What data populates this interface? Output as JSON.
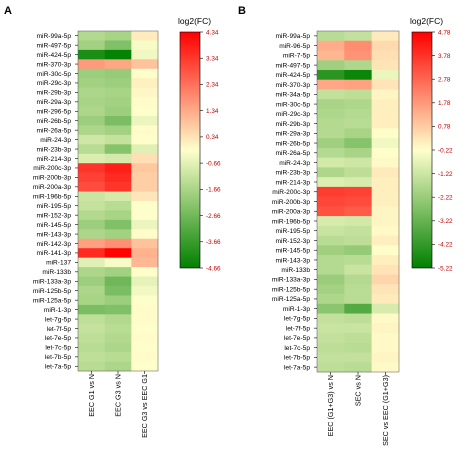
{
  "chart_data": [
    {
      "type": "heatmap",
      "panel_label": "A",
      "legend_title": "log2(FC)",
      "colorscale": {
        "min": -4.66,
        "max": 4.34,
        "low_color": "#008000",
        "mid_color": "#ffffcc",
        "high_color": "#ff0000"
      },
      "legend_ticks": [
        "4.34",
        "3.34",
        "2.34",
        "1.34",
        "0.34",
        "-0.66",
        "-1.66",
        "-2.66",
        "-3.66",
        "-4.66"
      ],
      "columns": [
        "EEC G1 vs N",
        "EEC G3 vs N",
        "EEC G3 vs EEC G1"
      ],
      "rows": [
        "miR-99a-5p",
        "miR-497-5p",
        "miR-424-5p",
        "miR-370-3p",
        "miR-30c-5p",
        "miR-29c-3p",
        "miR-29b-3p",
        "miR-29a-3p",
        "miR-296-5p",
        "miR-26b-5p",
        "miR-26a-5p",
        "miR-24-3p",
        "miR-23b-3p",
        "miR-214-3p",
        "miR-200c-3p",
        "miR-200b-3p",
        "miR-200a-3p",
        "miR-196b-5p",
        "miR-195-5p",
        "miR-152-3p",
        "miR-145-5p",
        "miR-143-3p",
        "miR-142-3p",
        "miR-141-3p",
        "miR-137",
        "miR-133b",
        "miR-133a-3p",
        "miR-125b-5p",
        "miR-125a-5p",
        "miR-1-3p",
        "let-7g-5p",
        "let-7f-5p",
        "let-7e-5p",
        "let-7c-5p",
        "let-7b-5p",
        "let-7a-5p"
      ],
      "values": [
        [
          -1.5,
          -1.7,
          0.2
        ],
        [
          -1.8,
          -2.4,
          -0.3
        ],
        [
          -4.2,
          -4.6,
          -0.4
        ],
        [
          1.6,
          1.4,
          0.9
        ],
        [
          -1.9,
          -2.0,
          -0.2
        ],
        [
          -1.8,
          -1.9,
          0.1
        ],
        [
          -1.6,
          -1.7,
          0.0
        ],
        [
          -1.7,
          -1.8,
          -0.1
        ],
        [
          -1.6,
          -1.9,
          -0.2
        ],
        [
          -1.9,
          -2.5,
          -0.5
        ],
        [
          -1.6,
          -1.8,
          -0.1
        ],
        [
          -1.0,
          -1.2,
          -0.2
        ],
        [
          -1.4,
          -2.3,
          -0.7
        ],
        [
          -0.8,
          -0.9,
          0.4
        ],
        [
          3.4,
          3.8,
          0.8
        ],
        [
          3.2,
          3.6,
          0.7
        ],
        [
          3.0,
          3.4,
          0.7
        ],
        [
          -1.1,
          -0.9,
          0.3
        ],
        [
          -1.2,
          -1.4,
          -0.2
        ],
        [
          -1.5,
          -1.7,
          -0.2
        ],
        [
          -1.9,
          -2.4,
          -0.5
        ],
        [
          -1.6,
          -1.8,
          -0.1
        ],
        [
          1.5,
          1.8,
          0.9
        ],
        [
          3.6,
          4.3,
          1.2
        ],
        [
          -0.7,
          -0.3,
          1.1
        ],
        [
          -1.6,
          -1.8,
          -0.2
        ],
        [
          -1.9,
          -2.7,
          -0.6
        ],
        [
          -1.6,
          -2.5,
          -0.4
        ],
        [
          -1.7,
          -1.9,
          -0.2
        ],
        [
          -2.5,
          -2.4,
          -0.1
        ],
        [
          -1.3,
          -1.5,
          -0.1
        ],
        [
          -1.2,
          -1.4,
          -0.2
        ],
        [
          -1.3,
          -1.5,
          -0.1
        ],
        [
          -1.4,
          -1.6,
          -0.2
        ],
        [
          -1.3,
          -1.4,
          -0.1
        ],
        [
          -1.4,
          -1.6,
          -0.2
        ]
      ]
    },
    {
      "type": "heatmap",
      "panel_label": "B",
      "legend_title": "log2(FC)",
      "colorscale": {
        "min": -5.22,
        "max": 4.78,
        "low_color": "#008000",
        "mid_color": "#ffffcc",
        "high_color": "#ff0000"
      },
      "legend_ticks": [
        "4.78",
        "3.78",
        "2.78",
        "1.78",
        "0.78",
        "-0.22",
        "-1.22",
        "-2.22",
        "-3.22",
        "-4.22",
        "-5.22"
      ],
      "columns": [
        "EEC (G1+G3) vs N",
        "SEC vs N",
        "SEC vs EEC (G1+G3)"
      ],
      "rows": [
        "miR-99a-5p",
        "miR-96-5p",
        "miR-7-5p",
        "miR-497-5p",
        "miR-424-5p",
        "miR-370-3p",
        "miR-34a-5p",
        "miR-30c-5p",
        "miR-29c-3p",
        "miR-29b-3p",
        "miR-29a-3p",
        "miR-26b-5p",
        "miR-26a-5p",
        "miR-24-3p",
        "miR-23b-3p",
        "miR-214-3p",
        "miR-200c-3p",
        "miR-200b-3p",
        "miR-200a-3p",
        "miR-196b-5p",
        "miR-195-5p",
        "miR-152-3p",
        "miR-145-5p",
        "miR-143-3p",
        "miR-133b",
        "miR-133a-3p",
        "miR-125b-5p",
        "miR-125a-5p",
        "miR-1-3p",
        "let-7g-5p",
        "let-7f-5p",
        "let-7e-5p",
        "let-7c-5p",
        "let-7b-5p",
        "let-7a-5p"
      ],
      "values": [
        [
          -1.6,
          -1.4,
          0.2
        ],
        [
          1.4,
          2.0,
          0.5
        ],
        [
          1.2,
          1.9,
          0.4
        ],
        [
          -2.1,
          -1.8,
          0.3
        ],
        [
          -4.4,
          -5.0,
          -0.6
        ],
        [
          1.5,
          1.6,
          0.3
        ],
        [
          -1.4,
          -1.5,
          0.0
        ],
        [
          -1.9,
          -1.8,
          0.1
        ],
        [
          -1.8,
          -1.7,
          0.1
        ],
        [
          -1.7,
          -1.6,
          0.1
        ],
        [
          -1.7,
          -1.9,
          -0.2
        ],
        [
          -2.1,
          -2.6,
          -0.5
        ],
        [
          -1.7,
          -1.9,
          -0.2
        ],
        [
          -1.1,
          -1.2,
          -0.1
        ],
        [
          -1.8,
          -1.5,
          0.2
        ],
        [
          -0.9,
          -1.0,
          0.1
        ],
        [
          3.6,
          3.5,
          0.1
        ],
        [
          3.4,
          3.3,
          0.1
        ],
        [
          3.2,
          3.0,
          0.0
        ],
        [
          -1.0,
          -1.1,
          0.0
        ],
        [
          -1.3,
          -1.4,
          -0.1
        ],
        [
          -1.6,
          -1.5,
          0.1
        ],
        [
          -2.1,
          -2.3,
          -0.2
        ],
        [
          -1.7,
          -1.6,
          0.1
        ],
        [
          -1.7,
          -1.3,
          0.3
        ],
        [
          -2.2,
          -1.7,
          0.6
        ],
        [
          -2.0,
          -1.6,
          0.3
        ],
        [
          -1.8,
          -1.6,
          0.2
        ],
        [
          -2.5,
          -3.6,
          -1.0
        ],
        [
          -1.4,
          -1.5,
          -0.1
        ],
        [
          -1.3,
          -1.3,
          0.0
        ],
        [
          -1.4,
          -1.5,
          -0.1
        ],
        [
          -1.5,
          -1.6,
          -0.1
        ],
        [
          -1.4,
          -1.4,
          0.0
        ],
        [
          -1.5,
          -1.6,
          -0.1
        ]
      ]
    }
  ]
}
